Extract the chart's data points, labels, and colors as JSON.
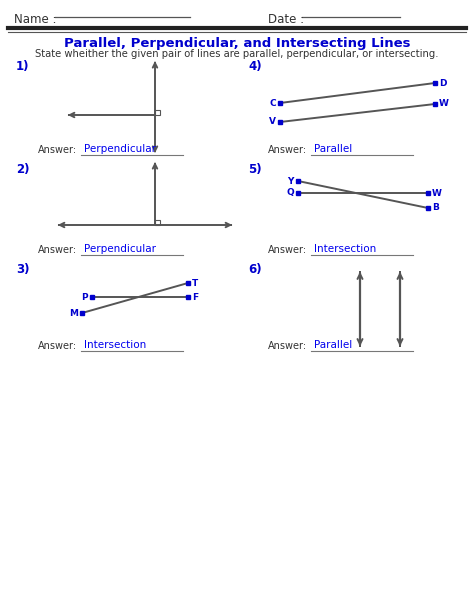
{
  "title": "Parallel, Perpendicular, and Intersecting Lines",
  "subtitle": "State wheither the given pair of lines are parallel, perpendicular, or intersecting.",
  "name_label": "Name :",
  "date_label": "Date :",
  "bg_color": "#ffffff",
  "blue": "#0000cd",
  "dark": "#333333",
  "line_color": "#555555",
  "ans_color": "#0000ee",
  "answers": [
    "Perpendicular",
    "Perpendicular",
    "Intersection",
    "Parallel",
    "Intersection",
    "Parallel"
  ]
}
